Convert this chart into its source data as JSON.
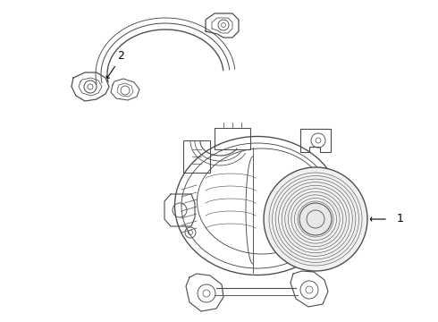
{
  "background_color": "#ffffff",
  "line_color": "#4a4a4a",
  "line_width": 0.8,
  "label_1": "1",
  "label_2": "2",
  "label_color": "#000000",
  "label_fontsize": 9,
  "arrow_color": "#000000",
  "fig_width": 4.9,
  "fig_height": 3.6,
  "dpi": 100
}
